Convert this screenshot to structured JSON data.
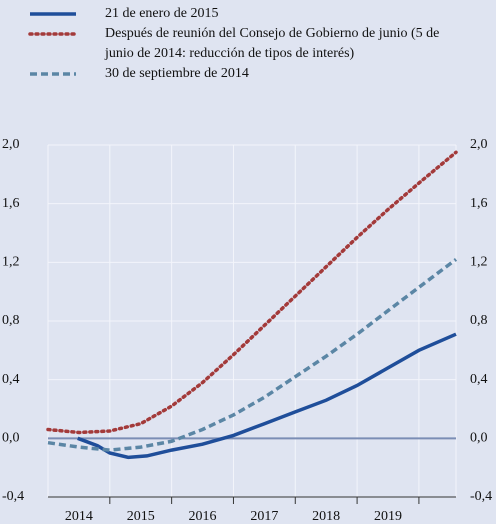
{
  "chart_data": {
    "type": "line",
    "series": [
      {
        "name": "21 de enero de 2015",
        "color": "#1f4e9a",
        "style": "solid",
        "x": [
          2014.48,
          2014.8,
          2015.0,
          2015.3,
          2015.6,
          2016.0,
          2016.5,
          2017.0,
          2017.5,
          2018.0,
          2018.5,
          2019.0,
          2019.5,
          2020.0,
          2020.6
        ],
        "values": [
          0.0,
          -0.05,
          -0.1,
          -0.13,
          -0.12,
          -0.08,
          -0.04,
          0.02,
          0.1,
          0.18,
          0.26,
          0.36,
          0.48,
          0.6,
          0.71
        ]
      },
      {
        "name": "Después de reunión del Consejo de Gobierno de junio (5 de junio de 2014: reducción de tipos de interés)",
        "color": "#a33a3a",
        "style": "dotted",
        "x": [
          2014.0,
          2014.5,
          2015.0,
          2015.5,
          2016.0,
          2016.5,
          2017.0,
          2017.5,
          2018.0,
          2018.5,
          2019.0,
          2019.5,
          2020.0,
          2020.6
        ],
        "values": [
          0.06,
          0.04,
          0.05,
          0.1,
          0.22,
          0.38,
          0.57,
          0.77,
          0.97,
          1.17,
          1.37,
          1.56,
          1.74,
          1.95
        ]
      },
      {
        "name": "30 de septiembre de 2014",
        "color": "#5b86a5",
        "style": "dashed",
        "x": [
          2014.0,
          2014.5,
          2015.0,
          2015.5,
          2016.0,
          2016.5,
          2017.0,
          2017.5,
          2018.0,
          2018.5,
          2019.0,
          2019.5,
          2020.0,
          2020.6
        ],
        "values": [
          -0.03,
          -0.06,
          -0.08,
          -0.06,
          -0.02,
          0.06,
          0.16,
          0.28,
          0.42,
          0.56,
          0.71,
          0.87,
          1.03,
          1.22
        ]
      }
    ],
    "xlim": [
      2014,
      2020.6
    ],
    "xticks": [
      {
        "value": 2014.5,
        "label": "2014"
      },
      {
        "value": 2015.5,
        "label": "2015"
      },
      {
        "value": 2016.5,
        "label": "2016"
      },
      {
        "value": 2017.5,
        "label": "2017"
      },
      {
        "value": 2018.5,
        "label": "2018"
      },
      {
        "value": 2019.5,
        "label": "2019"
      }
    ],
    "xgrid": [
      2015,
      2016,
      2017,
      2018,
      2019,
      2020
    ],
    "ylim": [
      -0.4,
      2.0
    ],
    "yticks": [
      {
        "value": -0.4,
        "label": "-0,4"
      },
      {
        "value": 0,
        "label": "0,0"
      },
      {
        "value": 0.4,
        "label": "0,4"
      },
      {
        "value": 0.8,
        "label": "0,8"
      },
      {
        "value": 1.2,
        "label": "1,2"
      },
      {
        "value": 1.6,
        "label": "1,6"
      },
      {
        "value": 2.0,
        "label": "2,0"
      }
    ],
    "y2lim": [
      -0.4,
      2.0
    ],
    "y2ticks": [
      {
        "value": -0.4,
        "label": "-0,4"
      },
      {
        "value": 0,
        "label": "0,0"
      },
      {
        "value": 0.4,
        "label": "0,4"
      },
      {
        "value": 0.8,
        "label": "0,8"
      },
      {
        "value": 1.2,
        "label": "1,2"
      },
      {
        "value": 1.6,
        "label": "1,6"
      },
      {
        "value": 2.0,
        "label": "2,0"
      }
    ],
    "grid": true
  }
}
